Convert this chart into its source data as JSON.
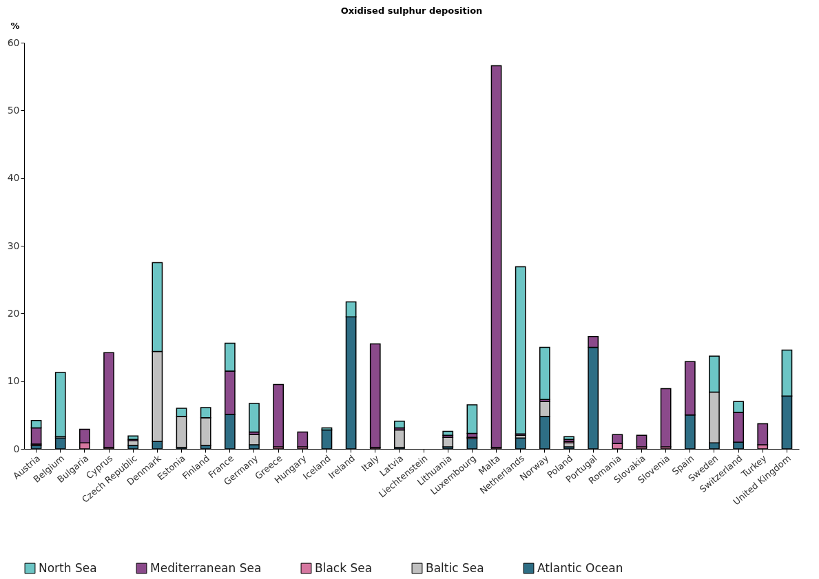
{
  "chart_data": {
    "type": "bar",
    "title": "Oxidised sulphur deposition",
    "ylabel": "%",
    "stacked": true,
    "categories": [
      "Austria",
      "Belgium",
      "Bulgaria",
      "Cyprus",
      "Czech Republic",
      "Denmark",
      "Estonia",
      "Finland",
      "France",
      "Germany",
      "Greece",
      "Hungary",
      "Iceland",
      "Ireland",
      "Italy",
      "Latvia",
      "Liechtenstein",
      "Lithuania",
      "Luxembourg",
      "Malta",
      "Netherlands",
      "Norway",
      "Poland",
      "Portugal",
      "Romania",
      "Slovakia",
      "Slovenia",
      "Spain",
      "Sweden",
      "Switzerland",
      "Turkey",
      "United Kingdom"
    ],
    "series": [
      {
        "name": "Atlantic Ocean",
        "color": "#2e6e85",
        "values": [
          0.5,
          1.6,
          0,
          0,
          0.5,
          1.1,
          0.2,
          0.5,
          5.1,
          0.6,
          0,
          0,
          2.8,
          19.5,
          0,
          0.2,
          0,
          0.3,
          1.5,
          0,
          1.6,
          4.8,
          0.3,
          15.0,
          0,
          0,
          0,
          5.0,
          0.9,
          1.0,
          0,
          7.8
        ]
      },
      {
        "name": "Baltic Sea",
        "color": "#c0c0c0",
        "values": [
          0,
          0.2,
          0,
          0,
          0.7,
          13.3,
          4.6,
          4.1,
          null,
          1.5,
          0,
          0,
          0,
          0,
          0,
          2.6,
          0,
          1.4,
          null,
          0,
          0.4,
          2.2,
          0.6,
          0,
          0,
          0,
          0,
          0,
          7.5,
          0,
          0,
          0
        ]
      },
      {
        "name": "Black Sea",
        "color": "#d677a0",
        "values": [
          0.2,
          0,
          0.9,
          0.2,
          null,
          0,
          0,
          0,
          0,
          0,
          0.3,
          0.3,
          0,
          0,
          0.2,
          0,
          0,
          0,
          0.2,
          0.2,
          0,
          0,
          0.2,
          0,
          0.8,
          0.3,
          0.3,
          0,
          0,
          0,
          0.6,
          0
        ]
      },
      {
        "name": "Mediterranean Sea",
        "color": "#8b4a8b",
        "values": [
          2.4,
          null,
          2.0,
          14.0,
          0.2,
          0,
          0,
          0,
          6.4,
          0.4,
          9.2,
          2.2,
          0,
          0,
          15.3,
          0.3,
          0,
          0.3,
          0.6,
          56.4,
          0.2,
          0.3,
          0.3,
          1.6,
          1.3,
          1.7,
          8.6,
          7.9,
          0,
          4.4,
          3.1,
          0
        ]
      },
      {
        "name": "North Sea",
        "color": "#6cc5c5",
        "values": [
          1.1,
          9.5,
          0,
          0,
          0.5,
          13.1,
          1.2,
          1.5,
          4.1,
          4.2,
          0,
          0,
          0.3,
          2.2,
          0,
          1.0,
          0,
          0.6,
          4.2,
          0,
          24.7,
          7.7,
          0.4,
          0,
          0,
          0,
          0,
          0,
          5.3,
          1.6,
          0,
          6.8
        ]
      }
    ],
    "ylim": [
      0,
      60
    ],
    "yticks": [
      0,
      10,
      20,
      30,
      40,
      50,
      60
    ],
    "grid": false,
    "legend": "bottom"
  }
}
